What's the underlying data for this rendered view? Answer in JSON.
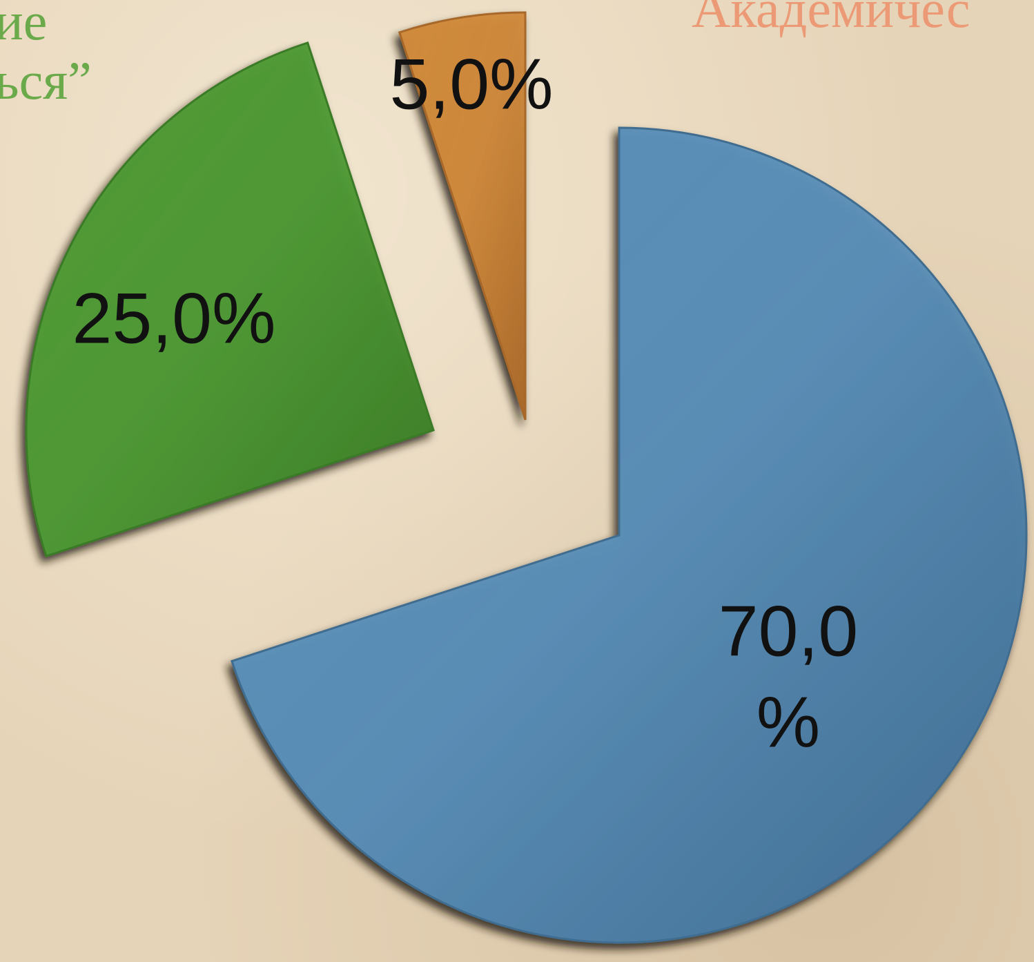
{
  "legend_fragments": [
    {
      "text": "ие\nься”",
      "color": "#6aaa4b"
    },
    {
      "text": "Академичес",
      "color": "#ec9a76"
    }
  ],
  "chart_data": {
    "type": "pie",
    "title": "",
    "legend": "partially visible, top",
    "exploded": true,
    "slices": [
      {
        "value": 70.0,
        "label": [
          "70,0",
          "%"
        ],
        "color": "#5a8fb8",
        "edge": "#3f6c90"
      },
      {
        "value": 25.0,
        "label": [
          "25,0%"
        ],
        "color": "#4f9a35",
        "edge": "#3a7a25"
      },
      {
        "value": 5.0,
        "label": [
          "5,0%"
        ],
        "color": "#d08a3c",
        "edge": "#a8682a"
      }
    ]
  }
}
